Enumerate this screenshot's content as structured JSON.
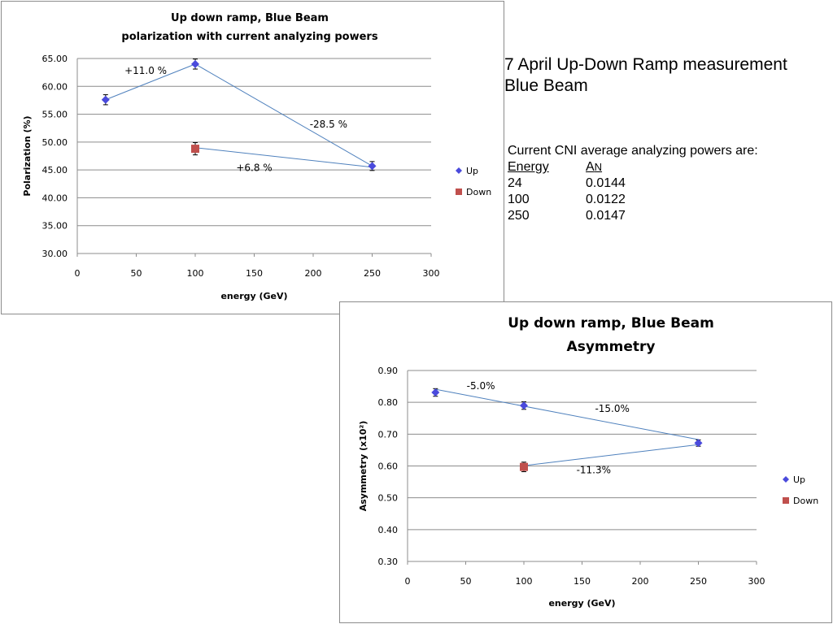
{
  "side_text": {
    "title_line1": "7 April Up-Down Ramp measurement",
    "title_line2": "Blue Beam",
    "intro": "Current CNI average analyzing powers are:",
    "col_energy": "Energy",
    "col_an_main": "A",
    "col_an_sub": "N",
    "rows": [
      {
        "energy": "24",
        "an": "0.0144"
      },
      {
        "energy": "100",
        "an": "0.0122"
      },
      {
        "energy": "250",
        "an": "0.0147"
      }
    ]
  },
  "colors": {
    "up": "#4a4adc",
    "down": "#c0504d",
    "line": "#4f81bd",
    "grid": "#8c8c8c"
  },
  "chart_data": [
    {
      "type": "scatter",
      "title": [
        "Up down ramp, Blue Beam",
        "polarization with current analyzing powers"
      ],
      "xlabel": "energy (GeV)",
      "ylabel": "Polarization (%)",
      "xlim": [
        0,
        300
      ],
      "ylim": [
        30,
        65
      ],
      "xticks": [
        0,
        50,
        100,
        150,
        200,
        250,
        300
      ],
      "yticks": [
        30,
        35,
        40,
        45,
        50,
        55,
        60,
        65
      ],
      "ytick_labels": [
        "30.00",
        "35.00",
        "40.00",
        "45.00",
        "50.00",
        "55.00",
        "60.00",
        "65.00"
      ],
      "grid": true,
      "legend": "right",
      "series": [
        {
          "name": "Up",
          "marker": "diamond",
          "x": [
            24,
            100,
            250
          ],
          "y": [
            57.6,
            64.0,
            45.7
          ],
          "err": [
            0.9,
            0.9,
            0.8
          ]
        },
        {
          "name": "Down",
          "marker": "square",
          "x": [
            100
          ],
          "y": [
            48.8
          ],
          "err": [
            1.1
          ]
        }
      ],
      "connectors": [
        [
          24,
          57.6,
          100,
          64.0
        ],
        [
          100,
          64.0,
          250,
          45.7
        ],
        [
          100,
          49.0,
          250,
          45.5
        ]
      ],
      "annotations": [
        {
          "text": "+11.0 %",
          "x": 58,
          "y": 62.8
        },
        {
          "text": "-28.5 %",
          "x": 213,
          "y": 53.2
        },
        {
          "text": "+6.8 %",
          "x": 150,
          "y": 45.4
        }
      ]
    },
    {
      "type": "scatter",
      "title": [
        "Up down ramp, Blue Beam",
        "Asymmetry"
      ],
      "xlabel": "energy (GeV)",
      "ylabel": "Asymmetry (x10²)",
      "xlim": [
        0,
        300
      ],
      "ylim": [
        0.3,
        0.9
      ],
      "xticks": [
        0,
        50,
        100,
        150,
        200,
        250,
        300
      ],
      "yticks": [
        0.3,
        0.4,
        0.5,
        0.6,
        0.7,
        0.8,
        0.9
      ],
      "ytick_labels": [
        "0.30",
        "0.40",
        "0.50",
        "0.60",
        "0.70",
        "0.80",
        "0.90"
      ],
      "grid": true,
      "legend": "right",
      "series": [
        {
          "name": "Up",
          "marker": "diamond",
          "x": [
            24,
            100,
            250
          ],
          "y": [
            0.831,
            0.79,
            0.672
          ],
          "err": [
            0.012,
            0.012,
            0.01
          ]
        },
        {
          "name": "Down",
          "marker": "square",
          "x": [
            100
          ],
          "y": [
            0.597
          ],
          "err": [
            0.015
          ]
        }
      ],
      "connectors": [
        [
          24,
          0.841,
          250,
          0.683
        ],
        [
          100,
          0.601,
          250,
          0.667
        ]
      ],
      "annotations": [
        {
          "text": "-5.0%",
          "x": 63,
          "y": 0.852
        },
        {
          "text": "-15.0%",
          "x": 176,
          "y": 0.78
        },
        {
          "text": "-11.3%",
          "x": 160,
          "y": 0.587
        }
      ]
    }
  ]
}
